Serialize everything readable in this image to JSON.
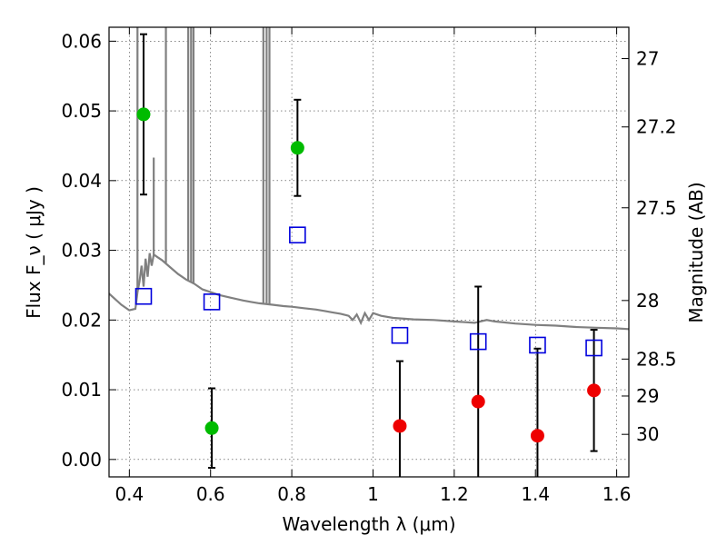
{
  "chart_data": {
    "type": "scatter",
    "xlabel": "Wavelength  λ (μm)",
    "ylabel": "Flux  F_ν  ( μJy )",
    "ylabel_right": "Magnitude (AB)",
    "xlim": [
      0.35,
      1.63
    ],
    "ylim": [
      -0.0025,
      0.062
    ],
    "grid": true,
    "x_ticks": [
      0.4,
      0.6,
      0.8,
      1.0,
      1.2,
      1.4,
      1.6
    ],
    "x_tick_labels": [
      "0.4",
      "0.6",
      "0.8",
      "1",
      "1.2",
      "1.4",
      "1.6"
    ],
    "y_ticks": [
      0.0,
      0.01,
      0.02,
      0.03,
      0.04,
      0.05,
      0.06
    ],
    "y_tick_labels": [
      "0.00",
      "0.01",
      "0.02",
      "0.03",
      "0.04",
      "0.05",
      "0.06"
    ],
    "right_ticks": [
      {
        "label": "27",
        "flux": 0.0575
      },
      {
        "label": "27.2",
        "flux": 0.0477
      },
      {
        "label": "27.5",
        "flux": 0.0361
      },
      {
        "label": "28",
        "flux": 0.0228
      },
      {
        "label": "28.5",
        "flux": 0.0144
      },
      {
        "label": "29",
        "flux": 0.0091
      },
      {
        "label": "30",
        "flux": 0.0036
      }
    ],
    "series": [
      {
        "kind": "detection",
        "color": "#00bb00",
        "points": [
          {
            "x": 0.435,
            "y": 0.0495,
            "err_low": 0.0115,
            "err_high": 0.0115
          },
          {
            "x": 0.603,
            "y": 0.0045,
            "err_low": 0.0057,
            "err_high": 0.0057
          },
          {
            "x": 0.814,
            "y": 0.0447,
            "err_low": 0.0069,
            "err_high": 0.0069
          }
        ]
      },
      {
        "kind": "upper-limit",
        "color": "#ee0000",
        "points": [
          {
            "x": 1.066,
            "y": 0.0048,
            "err_low": 0.0093,
            "err_high": 0.0093
          },
          {
            "x": 1.259,
            "y": 0.0083,
            "err_low": 0.0165,
            "err_high": 0.0165
          },
          {
            "x": 1.405,
            "y": 0.0034,
            "err_low": 0.0125,
            "err_high": 0.0125
          },
          {
            "x": 1.544,
            "y": 0.0099,
            "err_low": 0.0087,
            "err_high": 0.0087
          }
        ]
      },
      {
        "kind": "model-photometry",
        "color": "#0000dd",
        "points": [
          {
            "x": 0.435,
            "y": 0.0234
          },
          {
            "x": 0.603,
            "y": 0.0226
          },
          {
            "x": 0.814,
            "y": 0.0322
          },
          {
            "x": 1.066,
            "y": 0.0178
          },
          {
            "x": 1.259,
            "y": 0.0169
          },
          {
            "x": 1.405,
            "y": 0.0164
          },
          {
            "x": 1.544,
            "y": 0.016
          }
        ]
      }
    ],
    "model_spectrum": {
      "color": "#808080",
      "points": [
        [
          0.35,
          0.0238
        ],
        [
          0.38,
          0.0222
        ],
        [
          0.4,
          0.0214
        ],
        [
          0.415,
          0.0216
        ],
        [
          0.42,
          0.024
        ],
        [
          0.425,
          0.0255
        ],
        [
          0.43,
          0.0278
        ],
        [
          0.435,
          0.0248
        ],
        [
          0.44,
          0.0288
        ],
        [
          0.445,
          0.0262
        ],
        [
          0.45,
          0.0296
        ],
        [
          0.455,
          0.0278
        ],
        [
          0.46,
          0.0294
        ],
        [
          0.47,
          0.029
        ],
        [
          0.48,
          0.0286
        ],
        [
          0.5,
          0.0276
        ],
        [
          0.52,
          0.0266
        ],
        [
          0.54,
          0.0258
        ],
        [
          0.56,
          0.0252
        ],
        [
          0.58,
          0.0244
        ],
        [
          0.6,
          0.024
        ],
        [
          0.62,
          0.0236
        ],
        [
          0.65,
          0.0232
        ],
        [
          0.68,
          0.0228
        ],
        [
          0.7,
          0.0226
        ],
        [
          0.72,
          0.0224
        ],
        [
          0.75,
          0.0222
        ],
        [
          0.78,
          0.022
        ],
        [
          0.8,
          0.0219
        ],
        [
          0.83,
          0.0217
        ],
        [
          0.86,
          0.0215
        ],
        [
          0.88,
          0.0213
        ],
        [
          0.9,
          0.0211
        ],
        [
          0.92,
          0.0209
        ],
        [
          0.94,
          0.0206
        ],
        [
          0.95,
          0.02
        ],
        [
          0.96,
          0.0208
        ],
        [
          0.97,
          0.0196
        ],
        [
          0.98,
          0.021
        ],
        [
          0.99,
          0.02
        ],
        [
          1.0,
          0.021
        ],
        [
          1.02,
          0.0206
        ],
        [
          1.05,
          0.0203
        ],
        [
          1.1,
          0.0201
        ],
        [
          1.15,
          0.02
        ],
        [
          1.2,
          0.0198
        ],
        [
          1.25,
          0.0196
        ],
        [
          1.28,
          0.02
        ],
        [
          1.3,
          0.0198
        ],
        [
          1.35,
          0.0195
        ],
        [
          1.4,
          0.0193
        ],
        [
          1.45,
          0.0192
        ],
        [
          1.5,
          0.019
        ],
        [
          1.55,
          0.0189
        ],
        [
          1.6,
          0.0188
        ],
        [
          1.63,
          0.0187
        ]
      ],
      "spikes": [
        {
          "x": 0.42,
          "base": 0.024,
          "top": 0.062
        },
        {
          "x": 0.46,
          "base": 0.0294,
          "top": 0.0433
        },
        {
          "x": 0.49,
          "base": 0.0282,
          "top": 0.062
        },
        {
          "x": 0.545,
          "base": 0.0256,
          "top": 0.062
        },
        {
          "x": 0.552,
          "base": 0.0254,
          "top": 0.062
        },
        {
          "x": 0.558,
          "base": 0.0252,
          "top": 0.062
        },
        {
          "x": 0.73,
          "base": 0.0224,
          "top": 0.062
        },
        {
          "x": 0.738,
          "base": 0.0224,
          "top": 0.062
        },
        {
          "x": 0.745,
          "base": 0.0223,
          "top": 0.062
        }
      ]
    }
  }
}
